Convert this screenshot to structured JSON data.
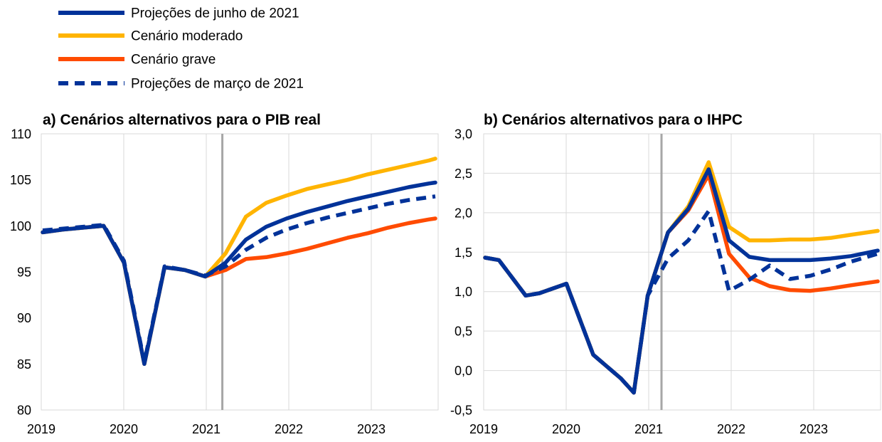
{
  "legend": [
    {
      "key": "june",
      "label": "Projeções de junho de 2021",
      "color": "#003299",
      "dashed": false
    },
    {
      "key": "mild",
      "label": "Cenário moderado",
      "color": "#FFB400",
      "dashed": false
    },
    {
      "key": "severe",
      "label": "Cenário grave",
      "color": "#FF4B00",
      "dashed": false
    },
    {
      "key": "march",
      "label": "Projeções de março de 2021",
      "color": "#003299",
      "dashed": true
    }
  ],
  "chart_data": [
    {
      "type": "line",
      "title": "a) Cenários alternativos para o PIB real",
      "x_tick_labels": [
        "2019",
        "2020",
        "2021",
        "2022",
        "2023"
      ],
      "x_range": [
        2019.0,
        2023.83
      ],
      "projection_start_marker": 2021.21,
      "ylim": [
        80,
        110
      ],
      "y_ticks": [
        80,
        85,
        90,
        95,
        100,
        105,
        110
      ],
      "y_tick_labels": [
        "80",
        "85",
        "90",
        "95",
        "100",
        "105",
        "110"
      ],
      "grid": "vertical",
      "x": [
        2019.0,
        2019.25,
        2019.5,
        2019.75,
        2020.0,
        2020.25,
        2020.5,
        2020.75,
        2021.0,
        2021.25,
        2021.5,
        2021.75,
        2022.0,
        2022.25,
        2022.5,
        2022.75,
        2023.0,
        2023.25,
        2023.5,
        2023.75,
        2023.83
      ],
      "series": [
        {
          "key": "severe",
          "values": [
            99.3,
            99.6,
            99.8,
            100.0,
            96.0,
            85.0,
            95.5,
            95.2,
            94.5,
            95.2,
            96.4,
            96.6,
            97.0,
            97.5,
            98.1,
            98.7,
            99.2,
            99.8,
            100.3,
            100.7,
            100.8
          ]
        },
        {
          "key": "mild",
          "values": [
            99.3,
            99.6,
            99.8,
            100.0,
            96.0,
            85.0,
            95.5,
            95.2,
            94.5,
            97.0,
            101.0,
            102.5,
            103.3,
            104.0,
            104.5,
            105.0,
            105.6,
            106.1,
            106.6,
            107.1,
            107.3
          ]
        },
        {
          "key": "june",
          "values": [
            99.3,
            99.6,
            99.8,
            100.0,
            96.0,
            85.0,
            95.5,
            95.2,
            94.5,
            96.0,
            98.5,
            99.9,
            100.8,
            101.5,
            102.1,
            102.7,
            103.2,
            103.7,
            104.2,
            104.6,
            104.7
          ]
        },
        {
          "key": "march",
          "values": [
            99.5,
            99.7,
            99.9,
            100.1,
            96.2,
            85.2,
            95.6,
            95.2,
            94.6,
            95.6,
            97.4,
            98.7,
            99.6,
            100.3,
            100.9,
            101.4,
            101.9,
            102.4,
            102.8,
            103.1,
            103.2
          ]
        }
      ]
    },
    {
      "type": "line",
      "title": "b) Cenários alternativos para o IHPC",
      "x_tick_labels": [
        "2019",
        "2020",
        "2021",
        "2022",
        "2023"
      ],
      "x_range": [
        2019.0,
        2023.83
      ],
      "projection_start_marker": 2021.17,
      "ylim": [
        -0.5,
        3.0
      ],
      "y_ticks": [
        -0.5,
        0.0,
        0.5,
        1.0,
        1.5,
        2.0,
        2.5,
        3.0
      ],
      "y_tick_labels": [
        "-0,5",
        "0,0",
        "0,5",
        "1,0",
        "1,5",
        "2,0",
        "2,5",
        "3,0"
      ],
      "grid": "both",
      "x": [
        2019.0,
        2019.17,
        2019.5,
        2019.67,
        2020.0,
        2020.33,
        2020.67,
        2020.83,
        2021.0,
        2021.25,
        2021.5,
        2021.75,
        2022.0,
        2022.25,
        2022.5,
        2022.75,
        2023.0,
        2023.25,
        2023.5,
        2023.83
      ],
      "series": [
        {
          "key": "severe",
          "values": [
            1.43,
            1.4,
            0.95,
            0.98,
            1.1,
            0.2,
            -0.1,
            -0.28,
            0.95,
            1.75,
            2.03,
            2.48,
            1.48,
            1.18,
            1.07,
            1.02,
            1.01,
            1.04,
            1.08,
            1.13
          ]
        },
        {
          "key": "mild",
          "values": [
            1.43,
            1.4,
            0.95,
            0.98,
            1.1,
            0.2,
            -0.1,
            -0.28,
            0.95,
            1.75,
            2.08,
            2.64,
            1.82,
            1.65,
            1.65,
            1.66,
            1.66,
            1.68,
            1.72,
            1.77
          ]
        },
        {
          "key": "june",
          "values": [
            1.43,
            1.4,
            0.95,
            0.98,
            1.1,
            0.2,
            -0.1,
            -0.28,
            0.95,
            1.75,
            2.05,
            2.55,
            1.65,
            1.44,
            1.4,
            1.4,
            1.4,
            1.42,
            1.45,
            1.52
          ]
        },
        {
          "key": "march",
          "values": [
            1.43,
            1.4,
            0.95,
            0.98,
            1.1,
            0.2,
            -0.1,
            -0.28,
            0.95,
            1.42,
            1.65,
            2.02,
            1.01,
            1.15,
            1.33,
            1.16,
            1.2,
            1.28,
            1.38,
            1.48
          ]
        }
      ]
    }
  ]
}
